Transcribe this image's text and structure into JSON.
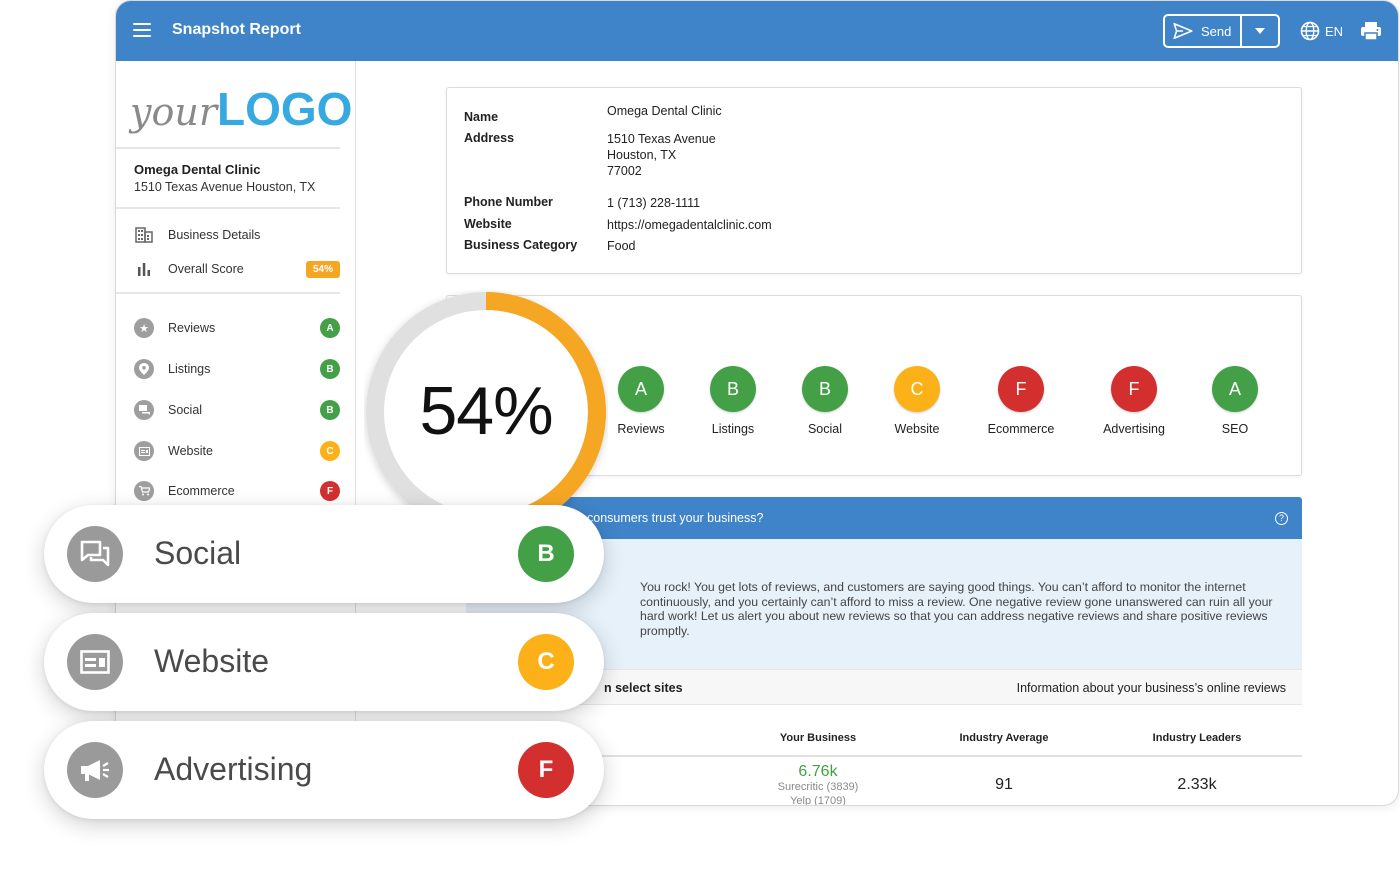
{
  "colors": {
    "header": "#3f84c9",
    "green": "#43a047",
    "yellow": "#fbb117",
    "red": "#d32f2f",
    "orange": "#f5a623"
  },
  "topbar": {
    "title": "Snapshot Report",
    "send_label": "Send",
    "lang_label": "EN"
  },
  "sidebar": {
    "logo_your": "your",
    "logo_brand": "LOGO",
    "business_name": "Omega Dental Clinic",
    "business_address": "1510 Texas Avenue Houston, TX",
    "nav": [
      {
        "label": "Business Details",
        "icon": "building-icon"
      },
      {
        "label": "Overall Score",
        "icon": "bar-chart-icon",
        "badge": "54%"
      }
    ],
    "sections": [
      {
        "label": "Reviews",
        "icon": "star-icon",
        "grade": "A"
      },
      {
        "label": "Listings",
        "icon": "location-pin-icon",
        "grade": "B"
      },
      {
        "label": "Social",
        "icon": "chat-icon",
        "grade": "B"
      },
      {
        "label": "Website",
        "icon": "browser-icon",
        "grade": "C"
      },
      {
        "label": "Ecommerce",
        "icon": "cart-icon",
        "grade": "F"
      }
    ]
  },
  "details": {
    "name_label": "Name",
    "name_value": "Omega Dental Clinic",
    "address_label": "Address",
    "address_line1": "1510 Texas Avenue",
    "address_line2": "Houston, TX",
    "address_line3": "77002",
    "phone_label": "Phone Number",
    "phone_value": "1 (713) 228-1111",
    "website_label": "Website",
    "website_value": "https://omegadentalclinic.com",
    "category_label": "Business Category",
    "category_value": "Food"
  },
  "score": {
    "percent_text": "54%",
    "fraction": 0.54
  },
  "grades": [
    {
      "label": "Reviews",
      "grade": "A"
    },
    {
      "label": "Listings",
      "grade": "B"
    },
    {
      "label": "Social",
      "grade": "B"
    },
    {
      "label": "Website",
      "grade": "C"
    },
    {
      "label": "Ecommerce",
      "grade": "F"
    },
    {
      "label": "Advertising",
      "grade": "F"
    },
    {
      "label": "SEO",
      "grade": "A"
    }
  ],
  "reviews": {
    "question": "consumers trust your business?",
    "message": "You rock! You get lots of reviews, and customers are saying good things. You can’t afford to monitor the internet continuously, and you certainly can’t afford to miss a review. One negative review gone unanswered can ruin all your hard work! Let us alert you about new reviews so that you can address negative reviews and share positive reviews promptly.",
    "table_left": "n select sites",
    "table_right": "Information about your business’s online reviews",
    "columns": [
      "Your Business",
      "Industry Average",
      "Industry Leaders"
    ],
    "your_business_value": "6.76k",
    "your_business_sub1": "Surecritic (3839)",
    "your_business_sub2": "Yelp (1709)",
    "industry_average": "91",
    "industry_leaders": "2.33k"
  },
  "pills": [
    {
      "label": "Social",
      "icon": "chat-icon",
      "grade": "B"
    },
    {
      "label": "Website",
      "icon": "browser-icon",
      "grade": "C"
    },
    {
      "label": "Advertising",
      "icon": "megaphone-icon",
      "grade": "F"
    }
  ]
}
